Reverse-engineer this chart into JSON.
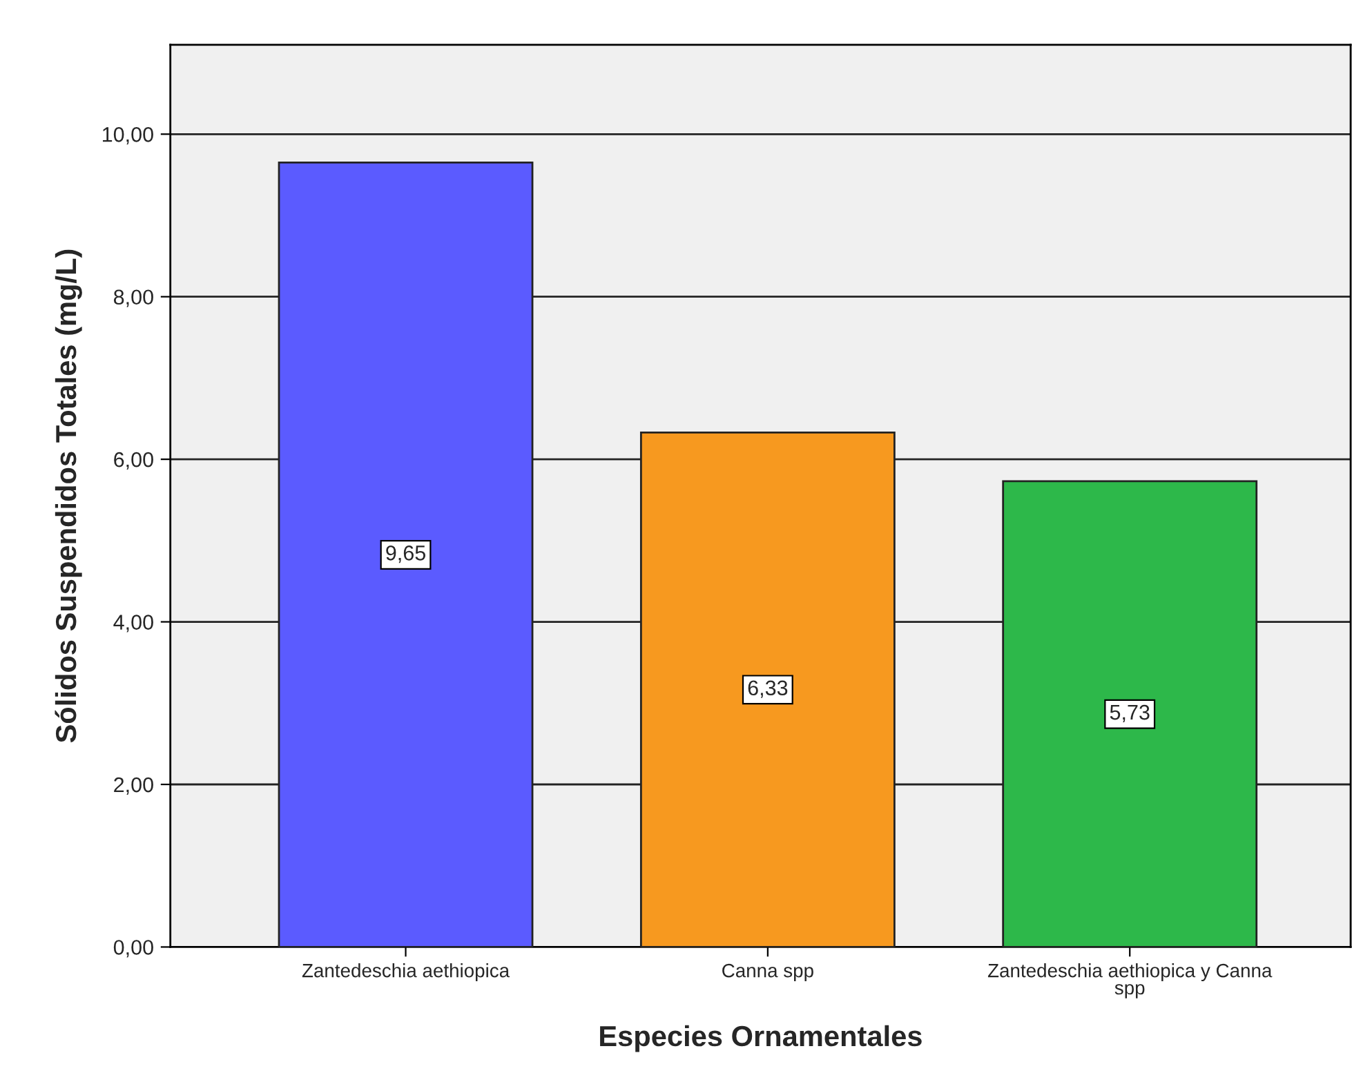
{
  "chart_data": {
    "type": "bar",
    "xlabel": "Especies Ornamentales",
    "ylabel": "Sólidos Suspendidos Totales (mg/L)",
    "categories": [
      "Zantedeschia aethiopica",
      "Canna spp",
      "Zantedeschia aethiopica y Canna spp"
    ],
    "values": [
      9.65,
      6.33,
      5.73
    ],
    "value_labels": [
      "9,65",
      "6,33",
      "5,73"
    ],
    "colors": [
      "#5b5bff",
      "#f7991f",
      "#2db84a"
    ],
    "ylim": [
      0,
      11.1
    ],
    "yticks": [
      {
        "value": 0,
        "label": "0,00"
      },
      {
        "value": 2,
        "label": "2,00"
      },
      {
        "value": 4,
        "label": "4,00"
      },
      {
        "value": 6,
        "label": "6,00"
      },
      {
        "value": 8,
        "label": "8,00"
      },
      {
        "value": 10,
        "label": "10,00"
      }
    ],
    "grid": "y"
  }
}
